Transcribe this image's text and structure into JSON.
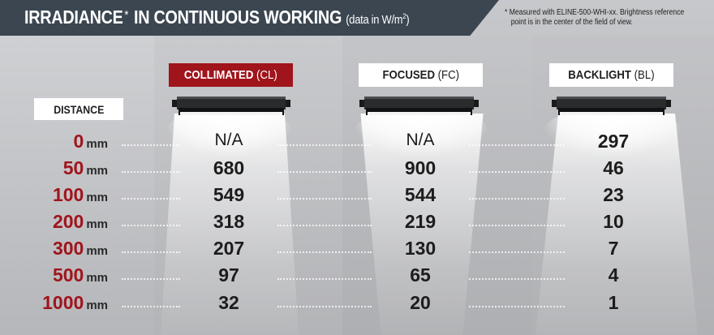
{
  "header": {
    "title": "IRRADIANCE",
    "title_star": "*",
    "title_rest": "IN CONTINUOUS WORKING",
    "unit_prefix": "(data in W/m",
    "unit_exp": "2",
    "unit_suffix": ")"
  },
  "note": {
    "line1": "* Measured with ELINE-500-WHI-xx. Brightness reference",
    "line2": "point is in the center of the field of view."
  },
  "columns": [
    {
      "name": "COLLIMATED",
      "code": "(CL)",
      "highlight": true,
      "color": "#a0141c"
    },
    {
      "name": "FOCUSED",
      "code": "(FC)",
      "highlight": false
    },
    {
      "name": "BACKLIGHT",
      "code": "(BL)",
      "highlight": false
    }
  ],
  "distance_label": "DISTANCE",
  "unit_mm": "mm",
  "rows": [
    {
      "distance": "0",
      "cl": "N/A",
      "fc": "N/A",
      "bl": "297"
    },
    {
      "distance": "50",
      "cl": "680",
      "fc": "900",
      "bl": "46"
    },
    {
      "distance": "100",
      "cl": "549",
      "fc": "544",
      "bl": "23"
    },
    {
      "distance": "200",
      "cl": "318",
      "fc": "219",
      "bl": "10"
    },
    {
      "distance": "300",
      "cl": "207",
      "fc": "130",
      "bl": "7"
    },
    {
      "distance": "500",
      "cl": "97",
      "fc": "65",
      "bl": "4"
    },
    {
      "distance": "1000",
      "cl": "32",
      "fc": "20",
      "bl": "1"
    }
  ],
  "colors": {
    "accent_red": "#a0141c",
    "header_bg": "#3b4651"
  }
}
